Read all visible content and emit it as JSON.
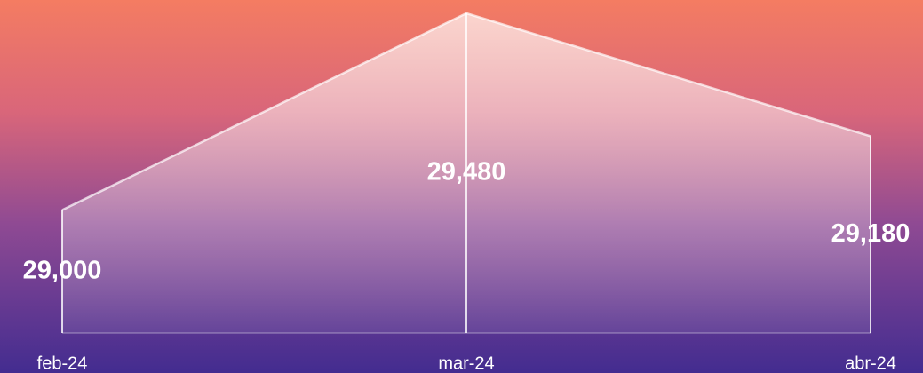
{
  "chart_data": {
    "type": "area",
    "categories": [
      "feb-24",
      "mar-24",
      "abr-24"
    ],
    "values": [
      29000,
      29480,
      29180
    ],
    "value_labels": [
      "29,000",
      "29,480",
      "29,180"
    ],
    "ylim": [
      28700,
      29480
    ],
    "color": "#ffffff"
  }
}
